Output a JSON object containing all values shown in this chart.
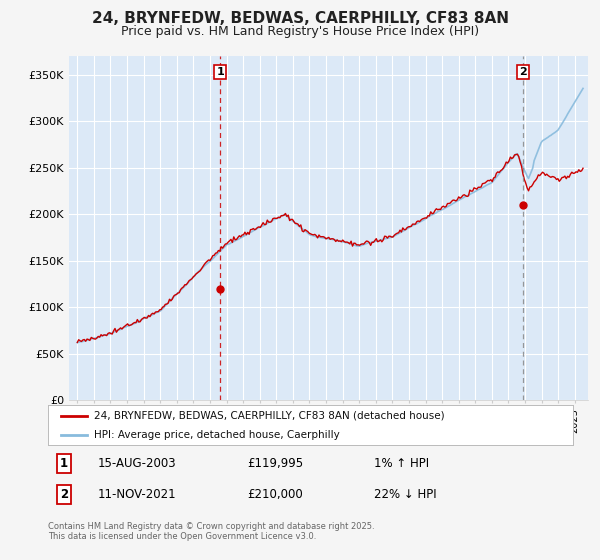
{
  "title": "24, BRYNFEDW, BEDWAS, CAERPHILLY, CF83 8AN",
  "subtitle": "Price paid vs. HM Land Registry's House Price Index (HPI)",
  "title_fontsize": 11,
  "subtitle_fontsize": 9,
  "ylim": [
    0,
    370000
  ],
  "yticks": [
    0,
    50000,
    100000,
    150000,
    200000,
    250000,
    300000,
    350000
  ],
  "ytick_labels": [
    "£0",
    "£50K",
    "£100K",
    "£150K",
    "£200K",
    "£250K",
    "£300K",
    "£350K"
  ],
  "fig_bg_color": "#f5f5f5",
  "plot_bg_color": "#dce9f7",
  "grid_color": "#ffffff",
  "hpi_color": "#88bbdd",
  "price_color": "#cc0000",
  "marker1_x": 2003.62,
  "marker1_y": 119995,
  "marker2_x": 2021.86,
  "marker2_y": 210000,
  "vline1_x": 2003.62,
  "vline2_x": 2021.86,
  "legend_line1": "24, BRYNFEDW, BEDWAS, CAERPHILLY, CF83 8AN (detached house)",
  "legend_line2": "HPI: Average price, detached house, Caerphilly",
  "annotation1_date": "15-AUG-2003",
  "annotation1_price": "£119,995",
  "annotation1_hpi": "1% ↑ HPI",
  "annotation2_date": "11-NOV-2021",
  "annotation2_price": "£210,000",
  "annotation2_hpi": "22% ↓ HPI",
  "footer": "Contains HM Land Registry data © Crown copyright and database right 2025.\nThis data is licensed under the Open Government Licence v3.0.",
  "xmin": 1994.5,
  "xmax": 2025.8
}
